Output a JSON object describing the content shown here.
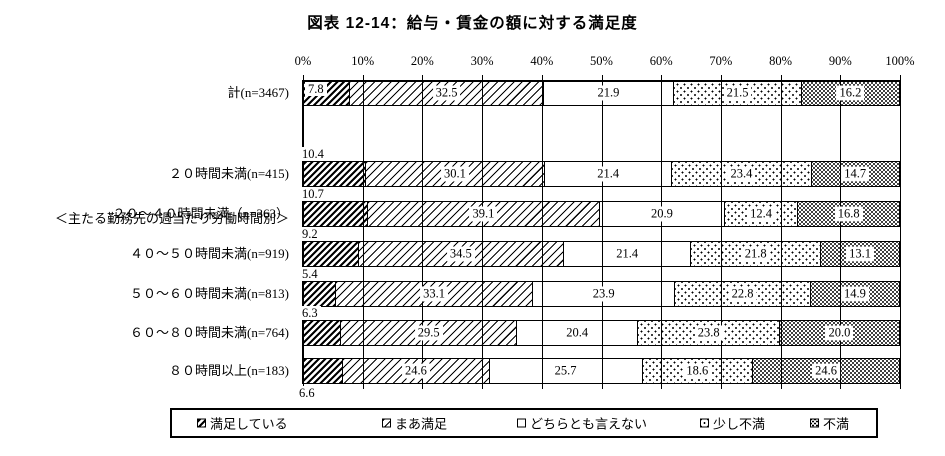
{
  "title": "図表 12-14：給与・賃金の額に対する満足度",
  "group_header": "＜主たる勤務先の週当たり労働時間別＞",
  "axis": {
    "ticks": [
      "0%",
      "10%",
      "20%",
      "30%",
      "40%",
      "50%",
      "60%",
      "70%",
      "80%",
      "90%",
      "100%"
    ]
  },
  "colors": {
    "ink": "#000000",
    "background": "#ffffff"
  },
  "chart_data": {
    "type": "bar",
    "stacked": true,
    "orientation": "horizontal",
    "unit": "%",
    "xlim": [
      0,
      100
    ],
    "grid": "vertical-major-10pct",
    "legend_position": "bottom",
    "categories": [
      "計(n=3467)",
      "２０時間未満(n=415)",
      "２０～４０時間未満（n=363）",
      "４０～５０時間未満(n=919)",
      "５０～６０時間未満(n=813)",
      "６０～８０時間未満(n=764)",
      "８０時間以上(n=183)"
    ],
    "series": [
      {
        "name": "満足している",
        "pattern": "dense-diagonal-hatch",
        "values": [
          7.8,
          10.4,
          10.7,
          9.2,
          5.4,
          6.3,
          6.6
        ]
      },
      {
        "name": "まあ満足",
        "pattern": "diagonal-hatch",
        "values": [
          32.5,
          30.1,
          39.1,
          34.5,
          33.1,
          29.5,
          24.6
        ]
      },
      {
        "name": "どちらとも言えない",
        "pattern": "white",
        "values": [
          21.9,
          21.4,
          20.9,
          21.4,
          23.9,
          20.4,
          25.7
        ]
      },
      {
        "name": "少し不満",
        "pattern": "sparse-dots",
        "values": [
          21.5,
          23.4,
          12.4,
          21.8,
          22.8,
          23.8,
          18.6
        ]
      },
      {
        "name": "不満",
        "pattern": "dense-dots",
        "values": [
          16.2,
          14.7,
          16.8,
          13.1,
          14.9,
          20.0,
          24.6
        ]
      }
    ]
  },
  "legend": {
    "items": [
      "満足している",
      "まあ満足",
      "どちらとも言えない",
      "少し不満",
      "不満"
    ]
  }
}
